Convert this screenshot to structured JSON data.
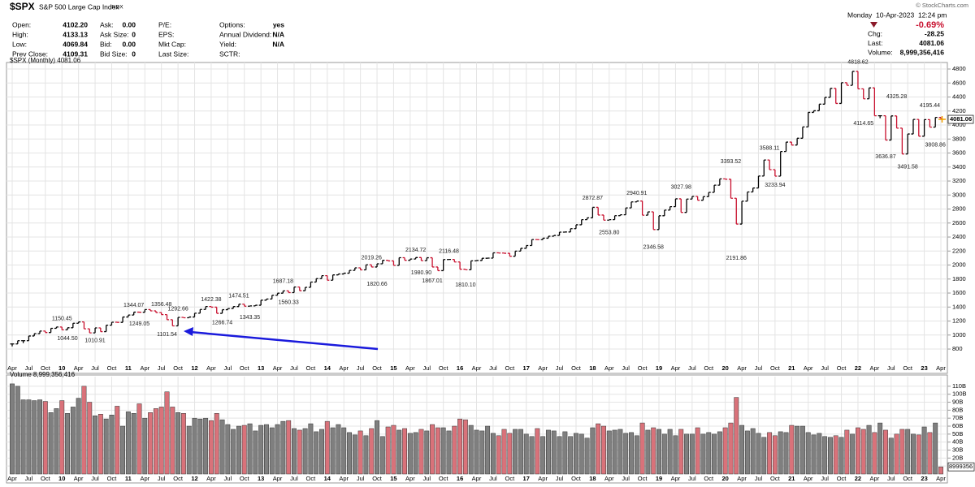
{
  "header": {
    "symbol": "$SPX",
    "name": "S&P 500 Large Cap Index",
    "exchange": "INDX",
    "credit": "© StockCharts.com",
    "columns": [
      [
        {
          "label": "Open:",
          "value": "4102.20"
        },
        {
          "label": "High:",
          "value": "4133.13"
        },
        {
          "label": "Low:",
          "value": "4069.84"
        },
        {
          "label": "Prev Close:",
          "value": "4109.31"
        }
      ],
      [
        {
          "label": "Ask:",
          "value": "0.00"
        },
        {
          "label": "Ask Size:",
          "value": "0"
        },
        {
          "label": "Bid:",
          "value": "0.00"
        },
        {
          "label": "Bid Size:",
          "value": "0"
        }
      ],
      [
        {
          "label": "P/E:"
        },
        {
          "label": "EPS:"
        },
        {
          "label": "Mkt Cap:"
        },
        {
          "label": "Last Size:"
        }
      ],
      [
        {
          "label": "Options:",
          "value": "yes"
        },
        {
          "label": "Annual Dividend:",
          "value": "N/A"
        },
        {
          "label": "Yield:",
          "value": "N/A"
        },
        {
          "label": "SCTR:"
        }
      ]
    ],
    "quote": {
      "date": "Monday  10-Apr-2023  12:24 pm",
      "change_pct": "-0.69%",
      "rows": [
        {
          "label": "Chg:",
          "value": "-28.25"
        },
        {
          "label": "Last:",
          "value": "4081.06"
        },
        {
          "label": "Volume:",
          "value": "8,999,356,416"
        }
      ]
    }
  },
  "chart_data": {
    "type": "ohlc",
    "categories": [
      "Apr",
      null,
      null,
      "Jul",
      null,
      null,
      "Oct",
      null,
      null,
      "10",
      null,
      null,
      "Apr",
      null,
      null,
      "Jul",
      null,
      null,
      "Oct",
      null,
      null,
      "11",
      null,
      null,
      "Apr",
      null,
      null,
      "Jul",
      null,
      null,
      "Oct",
      null,
      null,
      "12",
      null,
      null,
      "Apr",
      null,
      null,
      "Jul",
      null,
      null,
      "Oct",
      null,
      null,
      "13",
      null,
      null,
      "Apr",
      null,
      null,
      "Jul",
      null,
      null,
      "Oct",
      null,
      null,
      "14",
      null,
      null,
      "Apr",
      null,
      null,
      "Jul",
      null,
      null,
      "Oct",
      null,
      null,
      "15",
      null,
      null,
      "Apr",
      null,
      null,
      "Jul",
      null,
      null,
      "Oct",
      null,
      null,
      "16",
      null,
      null,
      "Apr",
      null,
      null,
      "Jul",
      null,
      null,
      "Oct",
      null,
      null,
      "17",
      null,
      null,
      "Apr",
      null,
      null,
      "Jul",
      null,
      null,
      "Oct",
      null,
      null,
      "18",
      null,
      null,
      "Apr",
      null,
      null,
      "Jul",
      null,
      null,
      "Oct",
      null,
      null,
      "19",
      null,
      null,
      "Apr",
      null,
      null,
      "Jul",
      null,
      null,
      "Oct",
      null,
      null,
      "20",
      null,
      null,
      "Apr",
      null,
      null,
      "Jul",
      null,
      null,
      "Oct",
      null,
      null,
      "21",
      null,
      null,
      "Apr",
      null,
      null,
      "Jul",
      null,
      null,
      "Oct",
      null,
      null,
      "22",
      null,
      null,
      "Apr",
      null,
      null,
      "Jul",
      null,
      null,
      "Oct",
      null,
      null,
      "23",
      null,
      null,
      "Apr"
    ],
    "series": [
      {
        "name": "$SPX (Monthly) 4081.06",
        "color_up": "#000000",
        "color_down": "#c8102e",
        "values": [
          873,
          919,
          919,
          987,
          1021,
          1057,
          1036,
          1096,
          1115,
          1074,
          1104,
          1169,
          1187,
          1089,
          1031,
          1102,
          1049,
          1141,
          1183,
          1181,
          1258,
          1286,
          1327,
          1326,
          1364,
          1345,
          1321,
          1292,
          1219,
          1131,
          1253,
          1247,
          1258,
          1312,
          1366,
          1408,
          1398,
          1310,
          1362,
          1379,
          1407,
          1441,
          1412,
          1416,
          1426,
          1498,
          1515,
          1569,
          1598,
          1631,
          1606,
          1686,
          1633,
          1682,
          1757,
          1806,
          1848,
          1783,
          1859,
          1872,
          1884,
          1924,
          1960,
          1931,
          2003,
          1972,
          2018,
          2068,
          2059,
          1995,
          2105,
          2068,
          2086,
          2107,
          2063,
          2104,
          1972,
          1920,
          2079,
          2080,
          2044,
          1940,
          1932,
          2060,
          2065,
          2097,
          2099,
          2174,
          2171,
          2168,
          2126,
          2199,
          2239,
          2279,
          2364,
          2363,
          2384,
          2412,
          2423,
          2470,
          2472,
          2519,
          2575,
          2648,
          2674,
          2824,
          2714,
          2641,
          2648,
          2705,
          2718,
          2816,
          2902,
          2914,
          2712,
          2760,
          2507,
          2704,
          2784,
          2834,
          2946,
          2752,
          2942,
          2980,
          2926,
          2977,
          3038,
          3141,
          3231,
          3226,
          2954,
          2585,
          2912,
          3044,
          3100,
          3271,
          3500,
          3363,
          3270,
          3622,
          3756,
          3714,
          3811,
          3973,
          4181,
          4204,
          4298,
          4395,
          4523,
          4308,
          4605,
          4567,
          4766,
          4516,
          4374,
          4530,
          4132,
          4132,
          3785,
          4130,
          3955,
          3586,
          3872,
          4080,
          3840,
          4077,
          3970,
          4109,
          4081.06
        ]
      }
    ],
    "high_labels": [
      null,
      null,
      null,
      null,
      null,
      null,
      null,
      null,
      null,
      1150.45,
      null,
      null,
      null,
      null,
      null,
      null,
      null,
      null,
      null,
      null,
      null,
      null,
      1344.07,
      null,
      null,
      null,
      null,
      1356.48,
      null,
      null,
      1292.66,
      null,
      null,
      null,
      null,
      null,
      1422.38,
      null,
      null,
      null,
      null,
      1474.51,
      null,
      null,
      null,
      null,
      null,
      null,
      null,
      1687.18,
      null,
      null,
      null,
      null,
      null,
      null,
      null,
      null,
      null,
      null,
      null,
      null,
      null,
      null,
      null,
      2019.26,
      null,
      null,
      null,
      null,
      null,
      null,
      null,
      2134.72,
      null,
      null,
      null,
      null,
      null,
      2116.48,
      null,
      null,
      null,
      null,
      null,
      null,
      null,
      null,
      null,
      null,
      null,
      null,
      null,
      null,
      null,
      null,
      null,
      null,
      null,
      null,
      null,
      null,
      null,
      null,
      null,
      2872.87,
      null,
      null,
      null,
      null,
      null,
      null,
      null,
      2940.91,
      null,
      null,
      null,
      null,
      null,
      null,
      null,
      3027.98,
      null,
      null,
      null,
      null,
      null,
      null,
      null,
      null,
      3393.52,
      null,
      null,
      null,
      null,
      null,
      null,
      3588.11,
      null,
      null,
      null,
      null,
      null,
      null,
      null,
      null,
      null,
      null,
      null,
      null,
      null,
      null,
      null,
      4818.62,
      null,
      null,
      null,
      null,
      null,
      null,
      4325.28,
      null,
      null,
      null,
      null,
      null,
      4195.44,
      null,
      null
    ],
    "low_labels": [
      null,
      null,
      null,
      null,
      null,
      null,
      null,
      null,
      null,
      null,
      {
        "value": 1044.5,
        "label": "1044.50"
      },
      null,
      null,
      null,
      null,
      1010.91,
      null,
      null,
      null,
      null,
      null,
      null,
      null,
      1249.05,
      null,
      null,
      null,
      null,
      1101.54,
      null,
      null,
      null,
      null,
      null,
      null,
      null,
      null,
      null,
      1266.74,
      null,
      null,
      null,
      null,
      1343.35,
      null,
      null,
      null,
      null,
      null,
      null,
      1560.33,
      null,
      null,
      null,
      null,
      null,
      null,
      null,
      null,
      null,
      null,
      null,
      null,
      null,
      null,
      null,
      1820.66,
      null,
      null,
      null,
      null,
      null,
      null,
      null,
      {
        "value": 1980.9,
        "label": "1980.90"
      },
      null,
      1867.01,
      null,
      null,
      null,
      null,
      null,
      {
        "value": 1810.1,
        "label": "1810.10"
      },
      null,
      null,
      null,
      null,
      null,
      null,
      null,
      null,
      null,
      null,
      null,
      null,
      null,
      null,
      null,
      null,
      null,
      null,
      null,
      null,
      null,
      null,
      null,
      null,
      null,
      {
        "value": 2553.8,
        "label": "2553.80"
      },
      null,
      null,
      null,
      null,
      null,
      null,
      null,
      2346.58,
      null,
      null,
      null,
      null,
      null,
      null,
      null,
      null,
      null,
      null,
      null,
      null,
      null,
      null,
      2191.86,
      null,
      null,
      null,
      null,
      null,
      null,
      3233.94,
      null,
      null,
      null,
      null,
      null,
      null,
      null,
      null,
      null,
      null,
      null,
      null,
      null,
      null,
      null,
      4114.65,
      null,
      null,
      null,
      3636.87,
      null,
      null,
      null,
      3491.58,
      null,
      null,
      null,
      null,
      3808.86,
      null
    ],
    "ylim": [
      615,
      4893
    ],
    "yticks": [
      800,
      1000,
      1200,
      1400,
      1600,
      1800,
      2000,
      2200,
      2400,
      2600,
      2800,
      3000,
      3200,
      3400,
      3600,
      3800,
      4000,
      4200,
      4400,
      4600,
      4800
    ],
    "grid": true,
    "volume": {
      "name": "Volume 8,999,356,416",
      "color_up": "#7f7f7f",
      "color_down": "#d9727a",
      "last_label": "8999356",
      "ylim": [
        0,
        118
      ],
      "yticks": [
        {
          "value": 10,
          "label": "10B"
        },
        {
          "value": 20,
          "label": "20B"
        },
        {
          "value": 30,
          "label": "30B"
        },
        {
          "value": 40,
          "label": "40B"
        },
        {
          "value": 50,
          "label": "50B"
        },
        {
          "value": 60,
          "label": "60B"
        },
        {
          "value": 70,
          "label": "70B"
        },
        {
          "value": 80,
          "label": "80B"
        },
        {
          "value": 90,
          "label": "90B"
        },
        {
          "value": 100,
          "label": "100B"
        },
        {
          "value": 110,
          "label": "110B"
        }
      ],
      "values": [
        113,
        110,
        93,
        93,
        92,
        93,
        91,
        77,
        82,
        92,
        76,
        84,
        95,
        110,
        90,
        73,
        75,
        69,
        74,
        85,
        60,
        78,
        76,
        88,
        70,
        77,
        82,
        84,
        103,
        84,
        77,
        76,
        60,
        70,
        69,
        70,
        67,
        76,
        68,
        62,
        56,
        60,
        61,
        63,
        54,
        61,
        62,
        58,
        62,
        66,
        67,
        57,
        55,
        57,
        63,
        53,
        56,
        66,
        58,
        62,
        58,
        52,
        49,
        54,
        48,
        57,
        67,
        47,
        59,
        61,
        55,
        57,
        51,
        52,
        56,
        54,
        62,
        58,
        58,
        54,
        60,
        69,
        68,
        61,
        55,
        54,
        60,
        51,
        48,
        56,
        51,
        56,
        56,
        50,
        47,
        57,
        47,
        55,
        54,
        47,
        53,
        47,
        51,
        50,
        45,
        58,
        63,
        60,
        54,
        55,
        56,
        51,
        52,
        48,
        64,
        55,
        58,
        56,
        50,
        56,
        48,
        56,
        50,
        50,
        58,
        50,
        52,
        50,
        53,
        58,
        64,
        96,
        61,
        54,
        57,
        51,
        46,
        52,
        48,
        53,
        52,
        61,
        60,
        60,
        52,
        49,
        51,
        47,
        46,
        48,
        46,
        55,
        50,
        58,
        56,
        61,
        52,
        64,
        55,
        45,
        50,
        56,
        56,
        50,
        49,
        59,
        52,
        64,
        8.999356416
      ]
    }
  }
}
